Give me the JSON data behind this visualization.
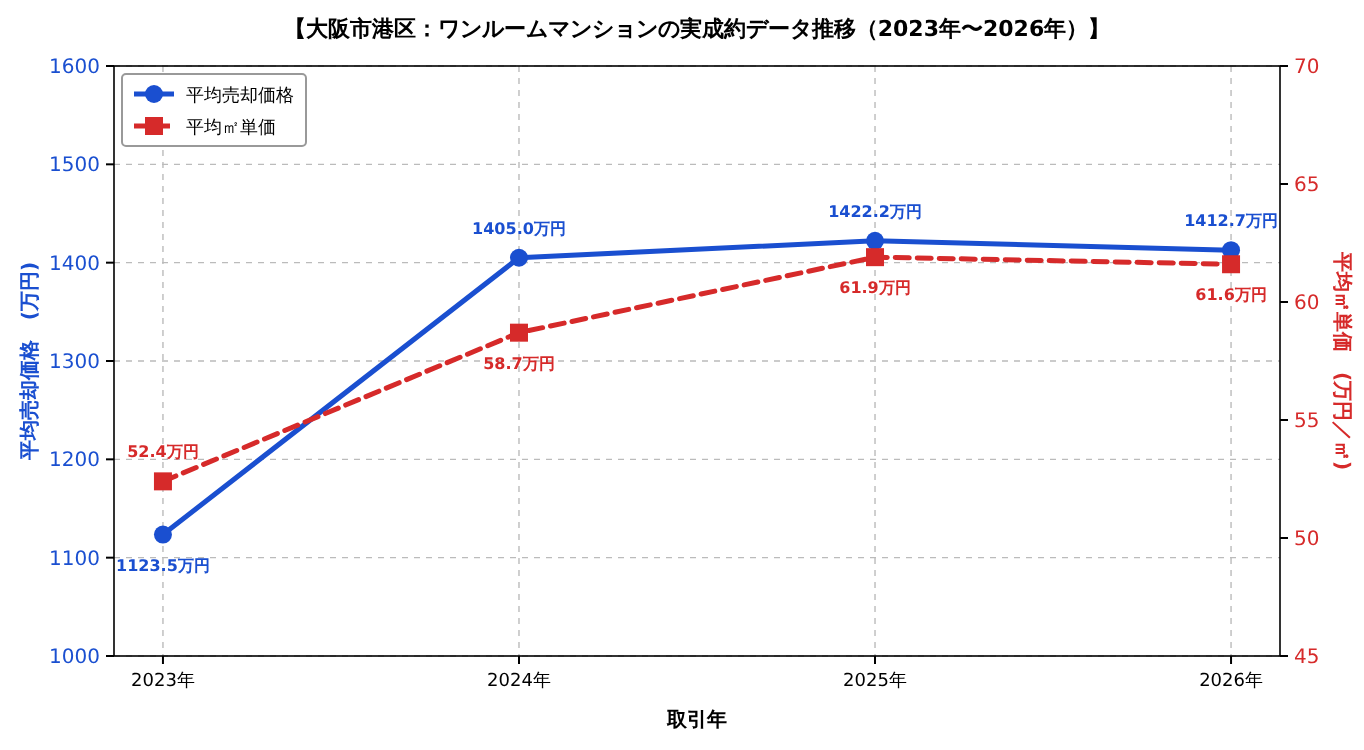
{
  "chart_data": {
    "type": "line",
    "title": "【大阪市港区：ワンルームマンションの実成約データ推移（2023年〜2026年）】",
    "xlabel": "取引年",
    "ylabel": "平均売却価格　(万円)",
    "y2label": "平均㎡単価　(万円／㎡)",
    "categories": [
      "2023年",
      "2024年",
      "2025年",
      "2026年"
    ],
    "series": [
      {
        "name": "平均売却価格",
        "color": "#1a4fd0",
        "values": [
          1123.5,
          1405.0,
          1422.2,
          1412.7
        ],
        "marker": "circle",
        "line_style": "solid",
        "value_labels": [
          "1123.5万円",
          "1405.0万円",
          "1422.2万円",
          "1412.7万円"
        ]
      },
      {
        "name": "平均㎡単価",
        "color": "#d62a2a",
        "values": [
          52.4,
          58.7,
          61.9,
          61.6
        ],
        "axis": "y2",
        "marker": "square",
        "line_style": "dashed",
        "value_labels": [
          "52.4万円",
          "58.7万円",
          "61.9万円",
          "61.6万円"
        ]
      }
    ],
    "ylim": [
      1000,
      1600
    ],
    "yticks": [
      1000,
      1100,
      1200,
      1300,
      1400,
      1500,
      1600
    ],
    "y2lim": [
      45,
      70
    ],
    "y2ticks": [
      45,
      50,
      55,
      60,
      65,
      70
    ],
    "grid": true,
    "legend": "top left"
  }
}
